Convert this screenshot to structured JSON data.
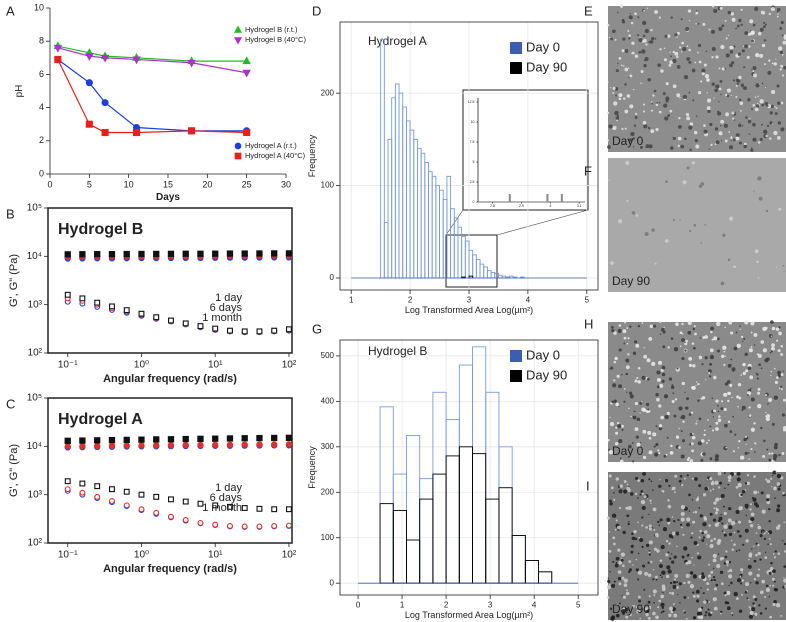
{
  "chart_data": [
    {
      "type": "line",
      "panel": "A",
      "x_label": "Days",
      "y_label": "pH",
      "x": [
        1,
        5,
        7,
        11,
        18,
        25
      ],
      "series": [
        {
          "name": "Hydrogel B (r.t.)",
          "color": "#22bb22",
          "marker": "triangle-up",
          "values": [
            7.7,
            7.3,
            7.1,
            7.0,
            6.8,
            6.8
          ]
        },
        {
          "name": "Hydrogel B (40°C)",
          "color": "#aa33cc",
          "marker": "triangle-down",
          "values": [
            7.6,
            7.1,
            7.0,
            6.9,
            6.7,
            6.1
          ]
        },
        {
          "name": "Hydrogel A (r.t.)",
          "color": "#1a3fe0",
          "marker": "circle",
          "values": [
            6.9,
            5.5,
            4.3,
            2.8,
            2.6,
            2.6
          ]
        },
        {
          "name": "Hydrogel A (40°C)",
          "color": "#e8201c",
          "marker": "square",
          "values": [
            6.9,
            3.0,
            2.5,
            2.5,
            2.6,
            2.5
          ]
        }
      ],
      "xlim": [
        0,
        30
      ],
      "xticks": [
        0,
        5,
        10,
        15,
        20,
        25,
        30
      ],
      "ylim": [
        0,
        10
      ],
      "yticks": [
        0,
        2,
        4,
        6,
        8,
        10
      ]
    },
    {
      "type": "scatter",
      "panel": "B",
      "annotation": "Hydrogel B",
      "x_label": "Angular frequency (rad/s)",
      "y_label": "G', G\" (Pa)",
      "log_x": true,
      "log_y": true,
      "x": [
        0.1,
        0.158,
        0.251,
        0.398,
        0.631,
        1,
        1.585,
        2.512,
        3.981,
        6.31,
        10,
        15.85,
        25.12,
        39.81,
        63.1,
        100
      ],
      "series": [
        {
          "name": "1 day",
          "color": "#2a3fd6",
          "marker": "circle",
          "storage_modulus": [
            9000,
            9050,
            9100,
            9100,
            9150,
            9200,
            9200,
            9250,
            9300,
            9300,
            9350,
            9400,
            9400,
            9450,
            9500,
            9500
          ],
          "loss_modulus": [
            1150,
            1050,
            900,
            780,
            680,
            590,
            510,
            450,
            390,
            340,
            300,
            280,
            270,
            270,
            280,
            290
          ]
        },
        {
          "name": "6 days",
          "color": "#e0302a",
          "marker": "circle",
          "storage_modulus": [
            9800,
            9850,
            9900,
            9900,
            9950,
            10000,
            10000,
            10050,
            10100,
            10100,
            10150,
            10200,
            10200,
            10250,
            10300,
            10300
          ],
          "loss_modulus": [
            1350,
            1200,
            1000,
            850,
            720,
            620,
            530,
            460,
            400,
            350,
            310,
            285,
            275,
            275,
            285,
            300
          ]
        },
        {
          "name": "1 month",
          "color": "#111111",
          "marker": "square",
          "storage_modulus": [
            11000,
            11050,
            11100,
            11100,
            11150,
            11200,
            11200,
            11250,
            11300,
            11300,
            11350,
            11400,
            11400,
            11450,
            11500,
            11500
          ],
          "loss_modulus": [
            1600,
            1350,
            1100,
            920,
            770,
            650,
            550,
            470,
            410,
            360,
            320,
            290,
            280,
            280,
            290,
            310
          ]
        }
      ],
      "xlim": [
        0.054,
        110
      ],
      "xticks": [
        {
          "value": 0.1,
          "label": "10⁻¹"
        },
        {
          "value": 1,
          "label": "10⁰"
        },
        {
          "value": 10,
          "label": "10¹"
        },
        {
          "value": 100,
          "label": "10²"
        }
      ],
      "ylim": [
        100,
        100000
      ],
      "yticks": [
        {
          "value": 100,
          "label": "10²"
        },
        {
          "value": 1000,
          "label": "10³"
        },
        {
          "value": 10000,
          "label": "10⁴"
        },
        {
          "value": 100000,
          "label": "10⁵"
        }
      ]
    },
    {
      "type": "scatter",
      "panel": "C",
      "annotation": "Hydrogel A",
      "x_label": "Angular frequency (rad/s)",
      "y_label": "G', G\" (Pa)",
      "log_x": true,
      "log_y": true,
      "x": [
        0.1,
        0.158,
        0.251,
        0.398,
        0.631,
        1,
        1.585,
        2.512,
        3.981,
        6.31,
        10,
        15.85,
        25.12,
        39.81,
        63.1,
        100
      ],
      "series": [
        {
          "name": "1 day",
          "color": "#2a3fd6",
          "marker": "circle",
          "storage_modulus": [
            9500,
            9600,
            9700,
            9800,
            9900,
            10000,
            10050,
            10100,
            10150,
            10200,
            10250,
            10300,
            10350,
            10400,
            10450,
            10500
          ],
          "loss_modulus": [
            1200,
            1000,
            850,
            700,
            580,
            480,
            400,
            340,
            290,
            255,
            235,
            220,
            215,
            215,
            220,
            225
          ]
        },
        {
          "name": "6 days",
          "color": "#e0302a",
          "marker": "circle",
          "storage_modulus": [
            10000,
            10100,
            10200,
            10300,
            10400,
            10500,
            10550,
            10600,
            10650,
            10700,
            10750,
            10800,
            10850,
            10900,
            10950,
            11000
          ],
          "loss_modulus": [
            1300,
            1100,
            900,
            740,
            600,
            500,
            420,
            350,
            300,
            260,
            240,
            225,
            220,
            220,
            225,
            230
          ]
        },
        {
          "name": "1 month",
          "color": "#111111",
          "marker": "square",
          "storage_modulus": [
            13000,
            13150,
            13300,
            13450,
            13600,
            13750,
            13900,
            14000,
            14150,
            14300,
            14400,
            14550,
            14700,
            14800,
            14900,
            15000
          ],
          "loss_modulus": [
            1900,
            1700,
            1500,
            1300,
            1150,
            1000,
            900,
            800,
            720,
            650,
            600,
            560,
            530,
            510,
            500,
            500
          ]
        }
      ],
      "xlim": [
        0.054,
        110
      ],
      "xticks": [
        {
          "value": 0.1,
          "label": "10⁻¹"
        },
        {
          "value": 1,
          "label": "10⁰"
        },
        {
          "value": 10,
          "label": "10¹"
        },
        {
          "value": 100,
          "label": "10²"
        }
      ],
      "ylim": [
        100,
        100000
      ],
      "yticks": [
        {
          "value": 100,
          "label": "10²"
        },
        {
          "value": 1000,
          "label": "10³"
        },
        {
          "value": 10000,
          "label": "10⁴"
        },
        {
          "value": 100000,
          "label": "10⁵"
        }
      ]
    },
    {
      "type": "histogram",
      "panel": "D",
      "annotation": "Hydrogel A",
      "x_label": "Log Transformed Area Log(µm²)",
      "y_label": "Frequency",
      "grid": true,
      "bins": [
        1.5,
        1.5625,
        1.625,
        1.6875,
        1.75,
        1.8125,
        1.875,
        1.9375,
        2.0,
        2.0625,
        2.125,
        2.1875,
        2.25,
        2.3125,
        2.375,
        2.4375,
        2.5,
        2.5625,
        2.625,
        2.6875,
        2.75,
        2.8125,
        2.875,
        2.9375,
        3.0,
        3.0625,
        3.125,
        3.1875,
        3.25,
        3.3125,
        3.375,
        3.4375,
        3.5,
        3.5625,
        3.625,
        3.6875,
        3.75,
        3.8125,
        3.875,
        3.9375,
        4.0
      ],
      "series": [
        {
          "name": "Day 0",
          "color": "#3a5fb0",
          "values": [
            258,
            60,
            150,
            195,
            210,
            200,
            185,
            170,
            160,
            150,
            140,
            135,
            125,
            115,
            110,
            100,
            95,
            85,
            110,
            75,
            65,
            55,
            45,
            40,
            30,
            25,
            20,
            15,
            12,
            8,
            6,
            5,
            3,
            2,
            1,
            2,
            1,
            0,
            1,
            0
          ]
        },
        {
          "name": "Day 90",
          "color": "#000000",
          "values": [
            0,
            0,
            0,
            0,
            0,
            0,
            0,
            0,
            0,
            0,
            0,
            0,
            0,
            0,
            0,
            0,
            0,
            0,
            0,
            0,
            0,
            0,
            1,
            0,
            2,
            0,
            0,
            0,
            0,
            0,
            0,
            0,
            0,
            0,
            0,
            0,
            0,
            0,
            0,
            0
          ]
        }
      ],
      "xlim": [
        0.81,
        5.19
      ],
      "xticks": [
        1,
        2,
        3,
        4,
        5
      ],
      "ylim": [
        -13,
        277
      ],
      "yticks": [
        0,
        100,
        200
      ]
    },
    {
      "type": "bar",
      "x": [
        2.86,
        2.99,
        3.04
      ],
      "values": [
        1,
        1,
        1
      ],
      "color": "#888888",
      "xlim": [
        2.75,
        3.12
      ],
      "xticks": [
        2.8,
        2.9,
        3,
        3.1
      ],
      "ylim": [
        0,
        13
      ],
      "yticks": [
        0,
        2.5,
        5,
        7.5,
        10,
        12.5
      ]
    },
    {
      "type": "histogram",
      "panel": "G",
      "annotation": "Hydrogel B",
      "x_label": "Log Transformed Area Log(µm²)",
      "y_label": "Frequency",
      "grid": true,
      "bins": [
        0.5,
        0.8,
        1.1,
        1.4,
        1.7,
        2.0,
        2.3,
        2.6,
        2.9,
        3.2,
        3.5,
        3.8,
        4.1,
        4.4
      ],
      "series": [
        {
          "name": "Day 0",
          "color": "#3a5fb0",
          "values": [
            388,
            240,
            325,
            230,
            420,
            360,
            480,
            520,
            420,
            300,
            105,
            50,
            25
          ]
        },
        {
          "name": "Day 90",
          "color": "#000000",
          "values": [
            175,
            160,
            95,
            185,
            240,
            280,
            300,
            285,
            185,
            210,
            105,
            50,
            25
          ]
        }
      ],
      "xlim": [
        -0.41,
        5.45
      ],
      "xticks": [
        0,
        1,
        2,
        3,
        4,
        5
      ],
      "ylim": [
        -26,
        535
      ],
      "yticks": [
        0,
        100,
        200,
        300,
        400,
        500
      ]
    }
  ],
  "images": [
    {
      "panel": "E",
      "label": "Day 0"
    },
    {
      "panel": "F",
      "label": "Day 90"
    },
    {
      "panel": "H",
      "label": "Day 0"
    },
    {
      "panel": "I",
      "label": "Day 90"
    }
  ]
}
